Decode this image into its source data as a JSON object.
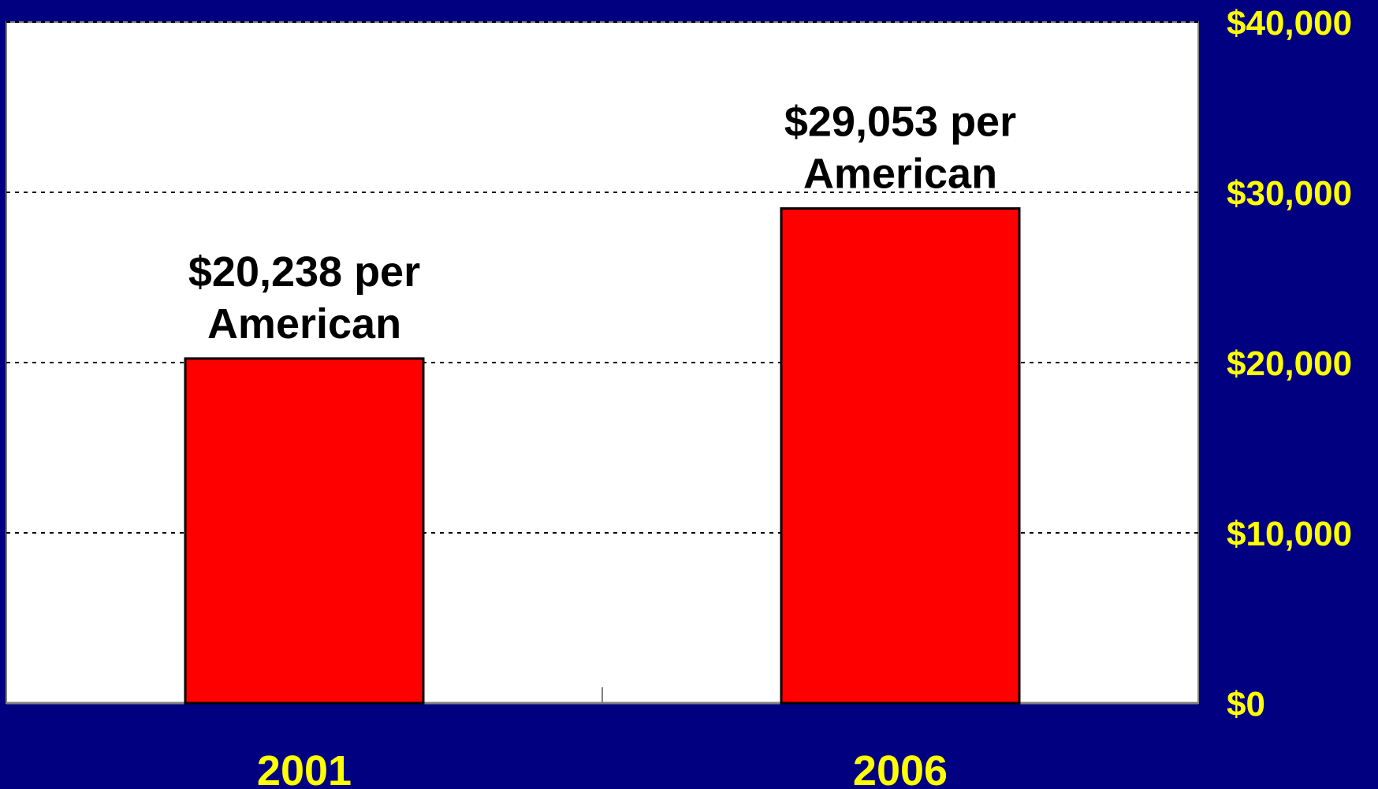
{
  "colors": {
    "background": "#000080",
    "plot_area": "#FFFFFF",
    "bar_fill": "#FF0000",
    "bar_stroke": "#000000",
    "tick_text": "#FFFF00",
    "category_text": "#FFFF00",
    "data_label_text": "#000000",
    "gridline": "#000000"
  },
  "chart_data": {
    "type": "bar",
    "categories": [
      "2001",
      "2006"
    ],
    "values": [
      20238,
      29053
    ],
    "data_labels": [
      [
        "$20,238 per",
        "American"
      ],
      [
        "$29,053 per",
        "American"
      ]
    ],
    "ylim": [
      0,
      40000
    ],
    "y_ticks": [
      0,
      10000,
      20000,
      30000,
      40000
    ],
    "y_tick_labels": [
      "$0",
      "$10,000",
      "$20,000",
      "$30,000",
      "$40,000"
    ],
    "y_axis_side": "right",
    "grid": "dotted horizontal",
    "legend": "none"
  }
}
